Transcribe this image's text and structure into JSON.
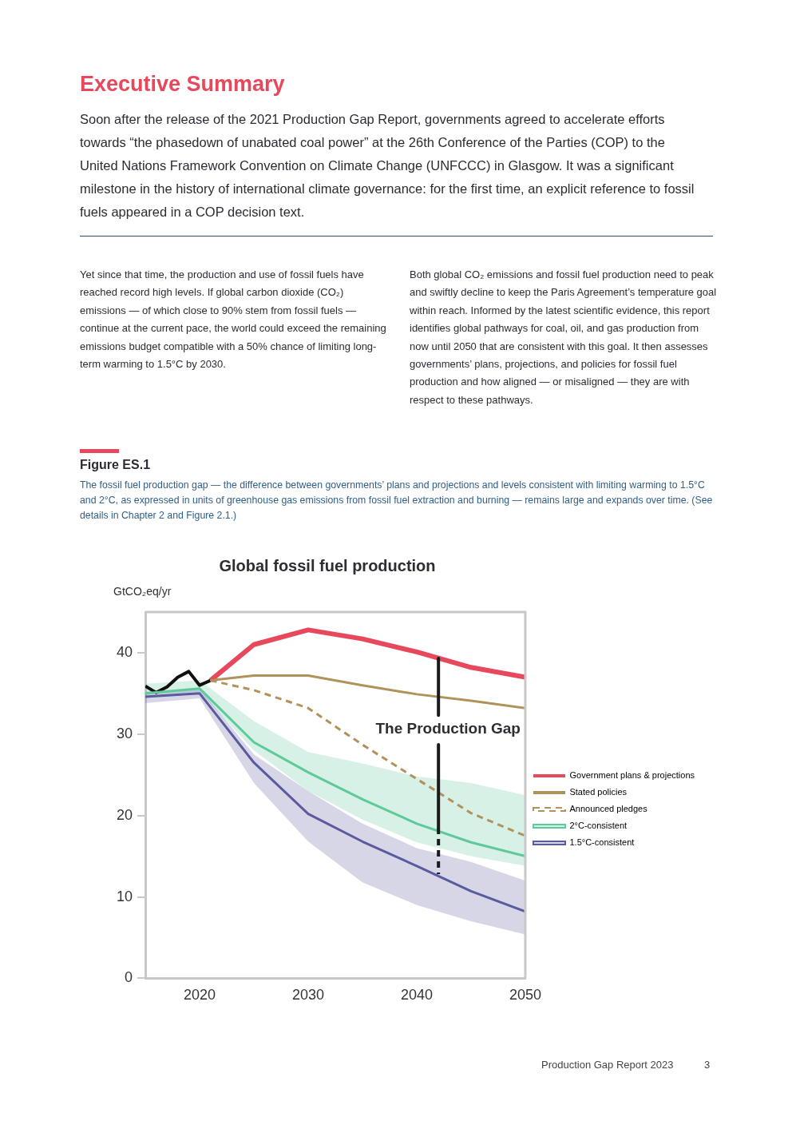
{
  "chart_data": {
    "type": "line",
    "title": "Global fossil fuel production",
    "ylabel": "GtCO₂eq/yr",
    "annotations": [
      "Executive Summary",
      "Soon after the release of the 2021 Production Gap Report, governments agreed to accelerate efforts towards “the phasedown of unabated coal power” at the 26th Conference of the Parties (COP) to the United Nations Framework Convention on Climate Change (UNFCCC) in Glasgow. It was a significant milestone in the history of international climate governance: for the first time, an explicit reference to fossil fuels appeared in a COP decision text.",
      "Yet since that time, the production and use of fossil fuels have reached record high levels. If global carbon dioxide (CO₂) emissions — of which close to 90% stem from fossil fuels — continue at the current pace, the world could exceed the remaining emissions budget compatible with a 50% chance of limiting long-term warming to 1.5°C by 2030.",
      "Both global CO₂ emissions and fossil fuel production need to peak and swiftly decline to keep the Paris Agreement’s temperature goal within reach. Informed by the latest scientific evidence, this report identifies global pathways for coal, oil, and gas production from now until 2050 that are consistent with this goal. It then assesses governments’ plans, projections, and policies for fossil fuel production and how aligned — or misaligned — they are with respect to these pathways.",
      "Figure ES.1",
      "The fossil fuel production gap — the difference between governments’ plans and projections and levels consistent with limiting warming to 1.5°C and 2°C, as expressed in units of greenhouse gas emissions from fossil fuel extraction and burning — remains large and expands over time. (See details in Chapter 2 and Figure 2.1.)",
      "Production Gap Report 2023",
      "3",
      "The Production Gap"
    ],
    "xlim": [
      2015,
      2050
    ],
    "xticks": [
      2020,
      2030,
      2040,
      2050
    ],
    "ylim": [
      0,
      45
    ],
    "yticks": [
      0,
      10,
      20,
      30,
      40
    ],
    "grid": false,
    "legend": "right",
    "marker": "none",
    "series": [
      {
        "color": "#111111",
        "x": [
          2015,
          2016,
          2017,
          2018,
          2019,
          2020,
          2021
        ],
        "values": [
          35.9,
          35.1,
          35.8,
          37.0,
          37.7,
          36.0,
          36.6
        ]
      },
      {
        "name": "Government plans & projections",
        "color": "#e8485c",
        "x": [
          2021,
          2025,
          2030,
          2035,
          2040,
          2045,
          2050
        ],
        "values": [
          36.6,
          41.0,
          42.8,
          41.7,
          40.1,
          38.2,
          37.0
        ]
      },
      {
        "name": "Stated policies",
        "color": "#b0925a",
        "x": [
          2021,
          2025,
          2030,
          2035,
          2040,
          2045,
          2050
        ],
        "values": [
          36.6,
          37.2,
          37.2,
          36.0,
          34.9,
          34.1,
          33.2
        ]
      },
      {
        "name": "Announced pledges",
        "color": "#b0925a",
        "line_style": "dashed",
        "x": [
          2021,
          2025,
          2030,
          2035,
          2040,
          2045,
          2050
        ],
        "values": [
          36.6,
          35.4,
          33.2,
          28.7,
          24.5,
          20.3,
          17.5
        ]
      },
      {
        "name": "2°C-consistent",
        "color": "#5ec99a",
        "x": [
          2015,
          2020,
          2025,
          2030,
          2035,
          2040,
          2045,
          2050
        ],
        "values": [
          35.0,
          35.6,
          29.0,
          25.3,
          22.0,
          19.0,
          16.7,
          15.0
        ],
        "lower": [
          34.8,
          35.2,
          28.0,
          23.0,
          19.5,
          16.7,
          15.0,
          13.8
        ],
        "upper": [
          36.2,
          36.6,
          31.6,
          27.8,
          26.4,
          24.8,
          24.0,
          22.5
        ]
      },
      {
        "name": "1.5°C-consistent",
        "color": "#5a5a9e",
        "x": [
          2015,
          2020,
          2025,
          2030,
          2035,
          2040,
          2045,
          2050
        ],
        "values": [
          34.6,
          35.0,
          26.5,
          20.2,
          16.8,
          13.8,
          10.7,
          8.2
        ],
        "lower": [
          33.8,
          34.4,
          24.0,
          16.8,
          11.8,
          9.0,
          7.0,
          5.4
        ],
        "upper": [
          35.2,
          35.6,
          27.5,
          23.0,
          19.0,
          16.0,
          14.3,
          12.0
        ]
      },
      {
        "color": "#1a1a1a",
        "x": [
          2042,
          2042
        ],
        "values": [
          39.3,
          32.3
        ]
      },
      {
        "color": "#1a1a1a",
        "x": [
          2042,
          2042
        ],
        "values": [
          28.7,
          18.5
        ]
      },
      {
        "color": "#1a1a1a",
        "line_style": "dashed",
        "x": [
          2042,
          2042
        ],
        "values": [
          18.5,
          12.8
        ]
      }
    ]
  }
}
